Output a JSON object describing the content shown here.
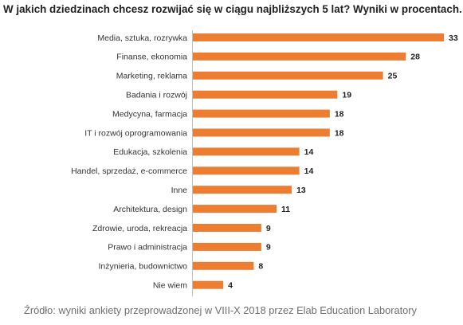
{
  "chart_data": {
    "type": "bar",
    "orientation": "horizontal",
    "title": "W jakich dziedzinach chcesz rozwijać się w ciągu najbliższych 5 lat? Wyniki w procentach.",
    "categories": [
      "Media, sztuka, rozrywka",
      "Finanse, ekonomia",
      "Marketing, reklama",
      "Badania i rozwój",
      "Medycyna, farmacja",
      "IT i rozwój oprogramowania",
      "Edukacja, szkolenia",
      "Handel, sprzedaż, e-commerce",
      "Inne",
      "Architektura, design",
      "Zdrowie, uroda, rekreacja",
      "Prawo i administracja",
      "Inżynieria, budownictwo",
      "Nie wiem"
    ],
    "values": [
      33,
      28,
      25,
      19,
      18,
      18,
      14,
      14,
      13,
      11,
      9,
      9,
      8,
      4
    ],
    "bar_color": "#ED7D31",
    "xlim": [
      0,
      33
    ],
    "grid": false,
    "legend": false
  },
  "source_note": "Źródło: wyniki ankiety przeprowadzonej w VIII-X 2018 przez Elab Education Laboratory"
}
